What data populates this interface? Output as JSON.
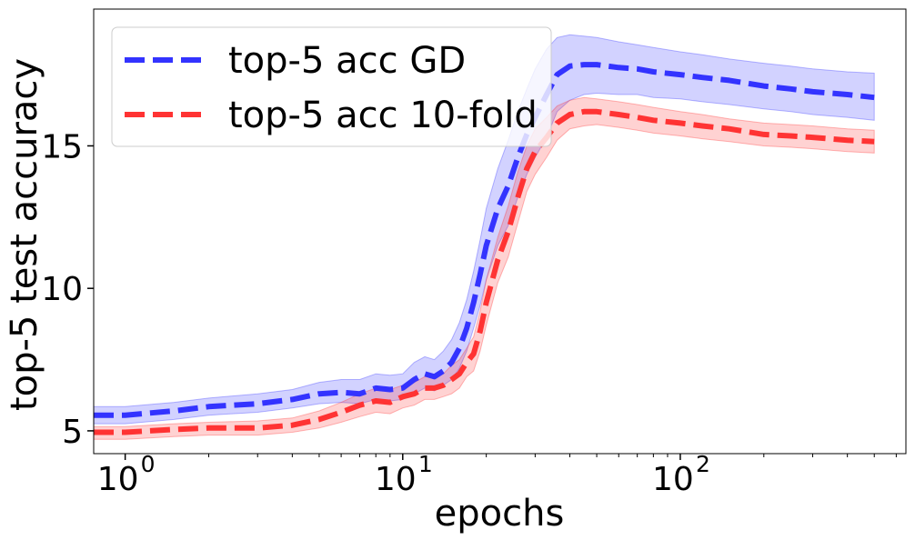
{
  "chart_data": {
    "type": "line",
    "title": "",
    "xlabel": "epochs",
    "ylabel": "top-5 test accuracy",
    "xscale": "log",
    "xlim": [
      0.77,
      650
    ],
    "ylim": [
      4.2,
      19.8
    ],
    "xticks": [
      {
        "value": 1,
        "base": "10",
        "exp": "0"
      },
      {
        "value": 10,
        "base": "10",
        "exp": "1"
      },
      {
        "value": 100,
        "base": "10",
        "exp": "2"
      }
    ],
    "yticks": [
      {
        "value": 5,
        "label": "5"
      },
      {
        "value": 10,
        "label": "10"
      },
      {
        "value": 15,
        "label": "15"
      }
    ],
    "grid": false,
    "legend_position": "top-left",
    "series": [
      {
        "name": "top-5 acc GD",
        "color": "#3333ff",
        "band_color": "#3333ff",
        "line_style": "dashed",
        "x": [
          0.77,
          1,
          1.5,
          2,
          3,
          4,
          5,
          6,
          7,
          8,
          9,
          10,
          11,
          12,
          13,
          14,
          15,
          16,
          17,
          18,
          19,
          20,
          22,
          24,
          26,
          28,
          30,
          33,
          36,
          40,
          45,
          50,
          60,
          70,
          80,
          100,
          120,
          150,
          200,
          250,
          300,
          400,
          500
        ],
        "y": [
          5.55,
          5.55,
          5.7,
          5.85,
          5.95,
          6.1,
          6.3,
          6.35,
          6.3,
          6.5,
          6.45,
          6.5,
          6.8,
          7.0,
          6.9,
          7.1,
          7.4,
          7.9,
          8.6,
          9.5,
          10.5,
          11.5,
          12.8,
          13.6,
          14.6,
          15.4,
          16.0,
          16.8,
          17.5,
          17.8,
          17.85,
          17.85,
          17.75,
          17.7,
          17.6,
          17.5,
          17.4,
          17.3,
          17.1,
          17.0,
          16.9,
          16.8,
          16.7
        ],
        "band_upper": [
          5.85,
          5.85,
          6.0,
          6.15,
          6.3,
          6.45,
          6.7,
          6.8,
          6.8,
          7.0,
          6.95,
          7.0,
          7.4,
          7.6,
          7.5,
          7.8,
          8.2,
          8.8,
          9.6,
          10.6,
          11.7,
          12.8,
          14.2,
          15.2,
          16.2,
          17.0,
          17.7,
          18.4,
          18.8,
          18.9,
          18.85,
          18.8,
          18.65,
          18.55,
          18.45,
          18.3,
          18.2,
          18.05,
          17.9,
          17.8,
          17.7,
          17.6,
          17.55
        ],
        "band_lower": [
          5.25,
          5.25,
          5.4,
          5.55,
          5.65,
          5.8,
          5.95,
          6.0,
          5.95,
          6.1,
          6.05,
          6.1,
          6.3,
          6.5,
          6.4,
          6.6,
          6.8,
          7.2,
          7.8,
          8.6,
          9.4,
          10.3,
          11.5,
          12.2,
          13.2,
          14.0,
          14.6,
          15.3,
          16.2,
          16.6,
          16.8,
          16.85,
          16.8,
          16.8,
          16.7,
          16.65,
          16.55,
          16.45,
          16.3,
          16.2,
          16.1,
          16.0,
          15.9
        ]
      },
      {
        "name": "top-5 acc 10-fold",
        "color": "#ff3333",
        "band_color": "#ff3333",
        "line_style": "dashed",
        "x": [
          0.77,
          1,
          1.5,
          2,
          3,
          4,
          5,
          6,
          7,
          8,
          9,
          10,
          11,
          12,
          13,
          14,
          15,
          16,
          17,
          18,
          19,
          20,
          22,
          24,
          26,
          28,
          30,
          33,
          36,
          40,
          45,
          50,
          60,
          70,
          80,
          100,
          120,
          150,
          200,
          250,
          300,
          400,
          500
        ],
        "y": [
          4.95,
          4.95,
          5.05,
          5.1,
          5.1,
          5.2,
          5.4,
          5.65,
          5.9,
          6.05,
          6.0,
          6.2,
          6.3,
          6.5,
          6.5,
          6.6,
          6.8,
          7.0,
          7.4,
          7.7,
          8.5,
          9.5,
          11.0,
          12.0,
          13.2,
          14.2,
          14.8,
          15.3,
          15.8,
          16.1,
          16.2,
          16.2,
          16.1,
          16.0,
          15.9,
          15.8,
          15.7,
          15.6,
          15.4,
          15.35,
          15.3,
          15.2,
          15.15
        ],
        "band_upper": [
          5.15,
          5.15,
          5.25,
          5.3,
          5.35,
          5.45,
          5.7,
          6.0,
          6.3,
          6.5,
          6.45,
          6.6,
          6.7,
          6.9,
          6.9,
          7.0,
          7.3,
          7.5,
          7.9,
          8.3,
          9.2,
          10.3,
          11.8,
          12.9,
          14.1,
          15.0,
          15.6,
          16.0,
          16.4,
          16.6,
          16.7,
          16.65,
          16.55,
          16.45,
          16.35,
          16.2,
          16.1,
          15.95,
          15.8,
          15.75,
          15.7,
          15.6,
          15.55
        ],
        "band_lower": [
          4.7,
          4.7,
          4.8,
          4.85,
          4.85,
          4.95,
          5.1,
          5.3,
          5.5,
          5.65,
          5.6,
          5.8,
          5.9,
          6.1,
          6.1,
          6.2,
          6.3,
          6.5,
          6.9,
          7.1,
          7.8,
          8.7,
          10.2,
          11.1,
          12.3,
          13.4,
          14.0,
          14.6,
          15.2,
          15.6,
          15.7,
          15.75,
          15.65,
          15.55,
          15.45,
          15.35,
          15.25,
          15.15,
          15.0,
          14.95,
          14.9,
          14.8,
          14.75
        ]
      }
    ]
  }
}
